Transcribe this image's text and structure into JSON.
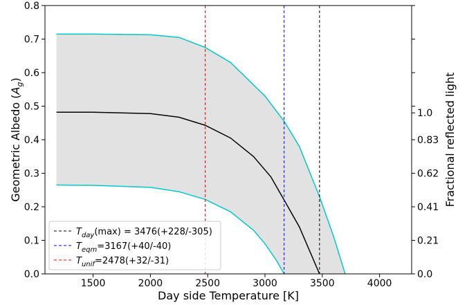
{
  "chart_data": {
    "type": "line",
    "xlabel": "Day side Temperature [K]",
    "ylabel": "Geometric Albedo (A_g)",
    "ylabel_main": "Geometric Albedo (",
    "ylabel_sym": "A",
    "ylabel_sub": "g",
    "ylabel_close": ")",
    "y2label": "Fractional reflected light",
    "xlim": [
      1080,
      4280
    ],
    "ylim": [
      0.0,
      0.8
    ],
    "x_ticks": [
      1500,
      2000,
      2500,
      3000,
      3500,
      4000
    ],
    "y_ticks": [
      0.0,
      0.1,
      0.2,
      0.3,
      0.4,
      0.5,
      0.6,
      0.7,
      0.8
    ],
    "x_tick_labels": [
      "1500",
      "2000",
      "2500",
      "3000",
      "3500",
      "4000"
    ],
    "y_tick_labels": [
      "0.0",
      "0.1",
      "0.2",
      "0.3",
      "0.4",
      "0.5",
      "0.6",
      "0.7",
      "0.8"
    ],
    "y2_ticks": [
      {
        "value": 0.0,
        "label": "0.0"
      },
      {
        "value": 0.1,
        "label": "0.21"
      },
      {
        "value": 0.2,
        "label": "0.41"
      },
      {
        "value": 0.3,
        "label": "0.62"
      },
      {
        "value": 0.4,
        "label": "0.83"
      },
      {
        "value": 0.48,
        "label": "1.0"
      }
    ],
    "y2_minor_ticks": [
      0.5,
      0.6,
      0.7,
      0.8
    ],
    "series": [
      {
        "color": "#00c8c8",
        "x": [
          1180,
          1500,
          2000,
          2250,
          2478,
          2700,
          3000,
          3167,
          3300,
          3476,
          3600,
          3700
        ],
        "y": [
          0.715,
          0.715,
          0.713,
          0.705,
          0.675,
          0.63,
          0.53,
          0.455,
          0.38,
          0.23,
          0.11,
          0.0
        ]
      },
      {
        "color": "#000000",
        "x": [
          1180,
          1500,
          2000,
          2250,
          2478,
          2700,
          2900,
          3050,
          3167,
          3300,
          3476
        ],
        "y": [
          0.482,
          0.482,
          0.478,
          0.467,
          0.443,
          0.405,
          0.35,
          0.29,
          0.22,
          0.14,
          0.0
        ]
      },
      {
        "color": "#00c8c8",
        "x": [
          1180,
          1500,
          2000,
          2250,
          2478,
          2700,
          2900,
          3000,
          3100,
          3167
        ],
        "y": [
          0.265,
          0.264,
          0.258,
          0.245,
          0.222,
          0.185,
          0.13,
          0.09,
          0.04,
          0.0
        ]
      }
    ],
    "vlines": [
      {
        "x": 3476,
        "color": "#000000",
        "label_sym": "T",
        "label_sub": "day",
        "label_rest": "(max) = 3476(+228/-305)"
      },
      {
        "x": 3167,
        "color": "#0000ff",
        "label_sym": "T",
        "label_sub": "eqm",
        "label_rest": "=3167(+40/-40)"
      },
      {
        "x": 2478,
        "color": "#ff0000",
        "label_sym": "T",
        "label_sub": "unif",
        "label_rest": "=2478(+32/-31)"
      }
    ],
    "fill_color": "#e2e2e2",
    "legend_position": "lower-left",
    "grid": false
  }
}
